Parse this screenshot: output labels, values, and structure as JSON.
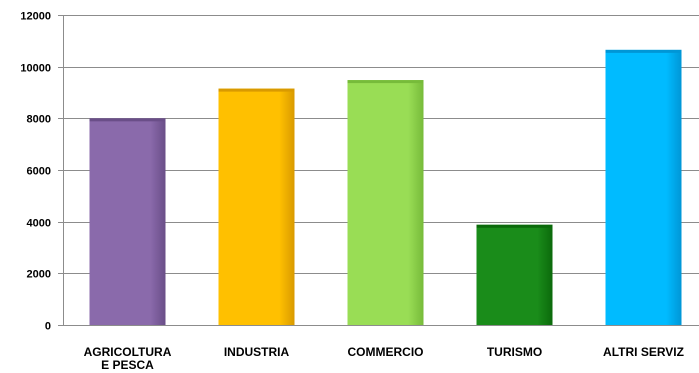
{
  "chart_data": {
    "type": "bar",
    "title": "",
    "xlabel": "",
    "ylabel": "",
    "ylim": [
      0,
      12000
    ],
    "yticks": [
      0,
      2000,
      4000,
      6000,
      8000,
      10000,
      12000
    ],
    "grid": true,
    "categories": [
      [
        "AGRICOLTURA",
        "E PESCA"
      ],
      [
        "INDUSTRIA"
      ],
      [
        "COMMERCIO"
      ],
      [
        "TURISMO"
      ],
      [
        "ALTRI SERVIZ"
      ]
    ],
    "values": [
      8000,
      9150,
      9480,
      3880,
      10650
    ],
    "colors": [
      "#8a6aab",
      "#ffc000",
      "#99dd55",
      "#1a8c1a",
      "#00bbff"
    ],
    "shade_colors": [
      "#6a4e88",
      "#d99a00",
      "#77bb3a",
      "#0b6a0b",
      "#0096d6"
    ]
  }
}
